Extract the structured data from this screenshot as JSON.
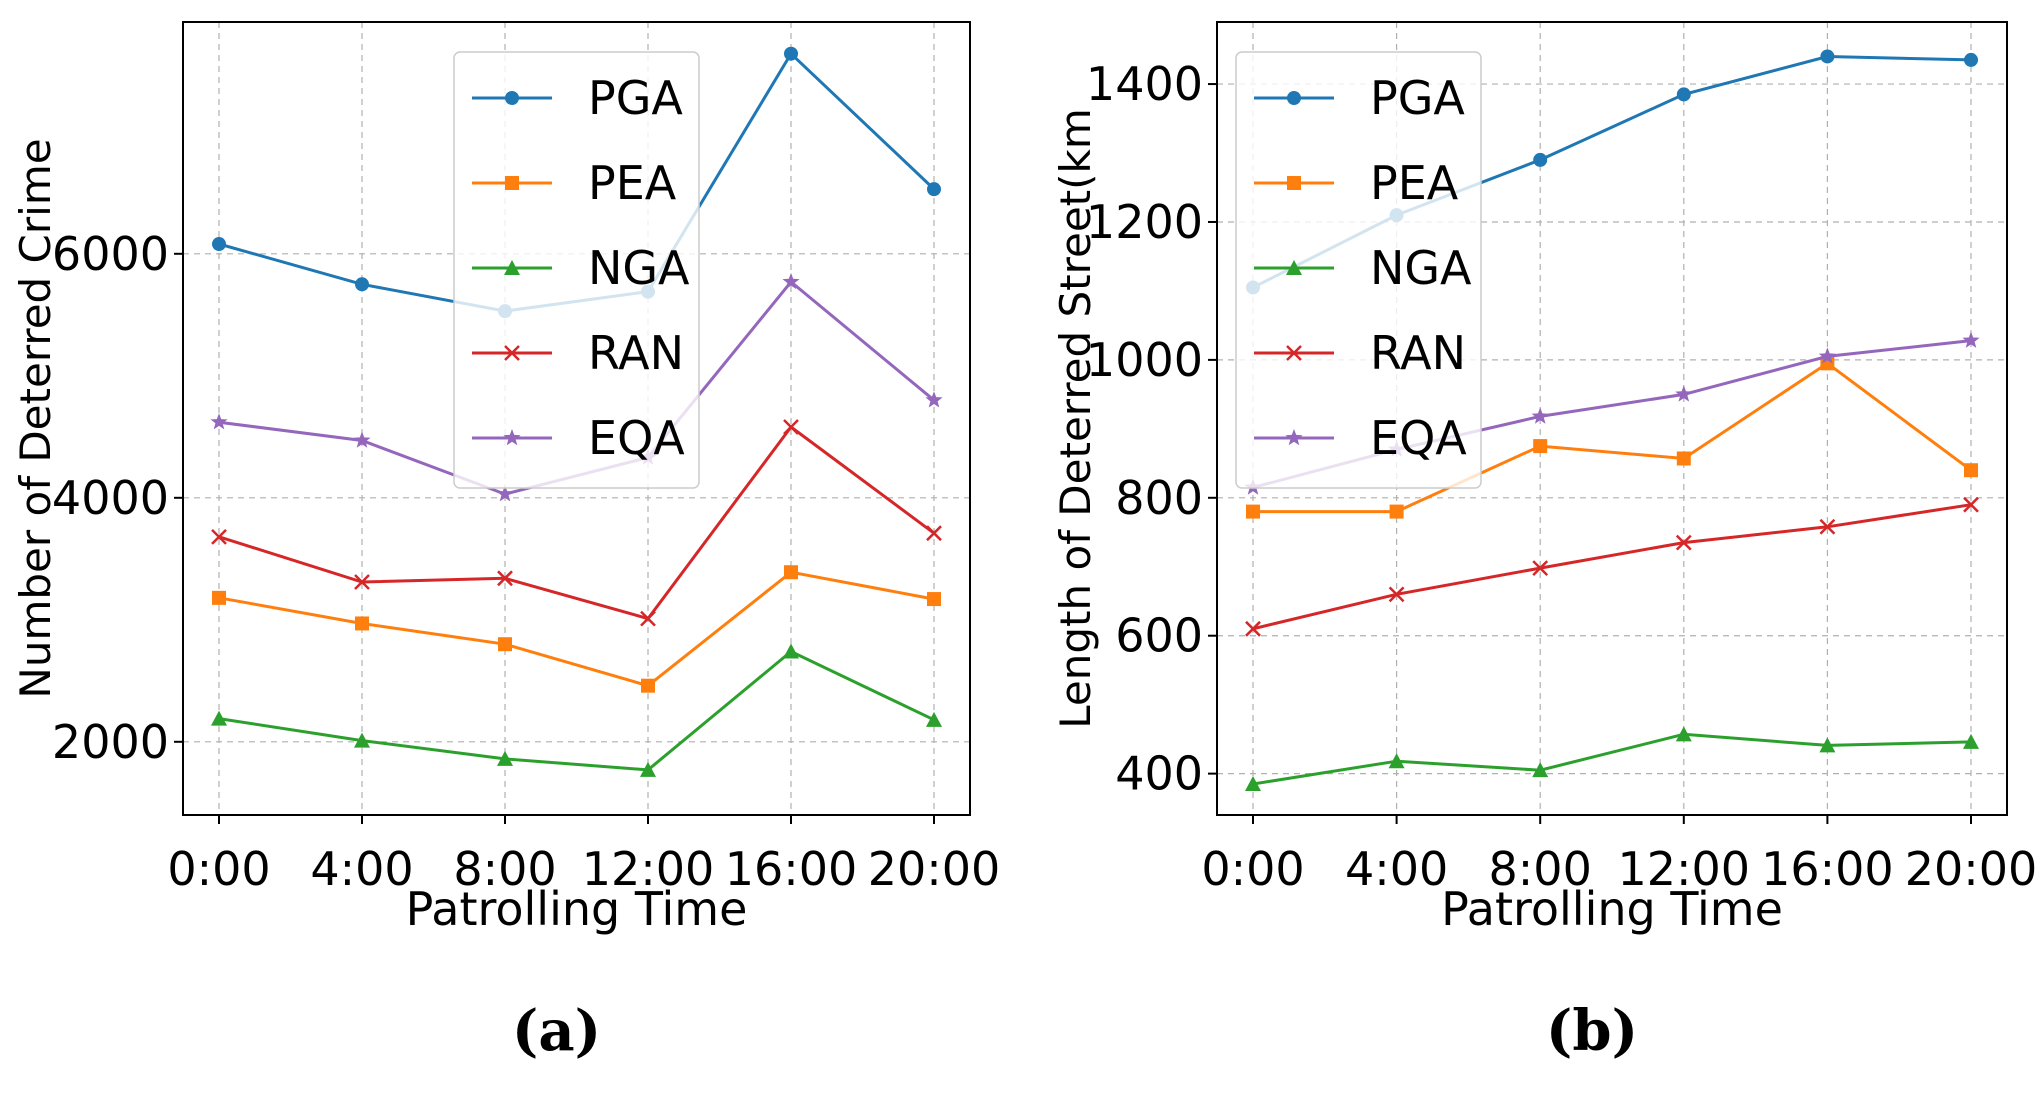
{
  "chart_data": [
    {
      "type": "line",
      "panel_label": "(a)",
      "xlabel": "Patrolling Time",
      "ylabel": "Number of Deterred Crime",
      "categories": [
        "0:00",
        "4:00",
        "8:00",
        "12:00",
        "16:00",
        "20:00"
      ],
      "ylim": [
        1400,
        7900
      ],
      "yticks": [
        "2000",
        "4000",
        "6000"
      ],
      "ytick_values": [
        2000,
        4000,
        6000
      ],
      "grid": true,
      "legend_position": "top-right",
      "series": [
        {
          "name": "PGA",
          "color": "#1f77b4",
          "marker": "circle",
          "values": [
            6080,
            5750,
            5530,
            5690,
            7640,
            6530
          ]
        },
        {
          "name": "PEA",
          "color": "#ff7f0e",
          "marker": "square",
          "values": [
            3180,
            2970,
            2800,
            2460,
            3390,
            3170
          ]
        },
        {
          "name": "NGA",
          "color": "#2ca02c",
          "marker": "triangle",
          "values": [
            2190,
            2010,
            1860,
            1770,
            2740,
            2180
          ]
        },
        {
          "name": "RAN",
          "color": "#d62728",
          "marker": "x",
          "values": [
            3680,
            3310,
            3340,
            3010,
            4580,
            3710
          ]
        },
        {
          "name": "EQA",
          "color": "#9467bd",
          "marker": "star",
          "values": [
            4620,
            4470,
            4030,
            4330,
            5770,
            4800
          ]
        }
      ]
    },
    {
      "type": "line",
      "panel_label": "(b)",
      "xlabel": "Patrolling Time",
      "ylabel": "Length of Deterred Street(km",
      "categories": [
        "0:00",
        "4:00",
        "8:00",
        "12:00",
        "16:00",
        "20:00"
      ],
      "ylim": [
        340,
        1490
      ],
      "yticks": [
        "400",
        "600",
        "800",
        "1000",
        "1200",
        "1400"
      ],
      "ytick_values": [
        400,
        600,
        800,
        1000,
        1200,
        1400
      ],
      "grid": true,
      "legend_position": "top-left",
      "series": [
        {
          "name": "PGA",
          "color": "#1f77b4",
          "marker": "circle",
          "values": [
            1105,
            1210,
            1290,
            1385,
            1440,
            1435
          ]
        },
        {
          "name": "PEA",
          "color": "#ff7f0e",
          "marker": "square",
          "values": [
            780,
            780,
            875,
            857,
            995,
            840
          ]
        },
        {
          "name": "NGA",
          "color": "#2ca02c",
          "marker": "triangle",
          "values": [
            385,
            418,
            405,
            457,
            441,
            446
          ]
        },
        {
          "name": "RAN",
          "color": "#d62728",
          "marker": "x",
          "values": [
            610,
            660,
            698,
            735,
            758,
            790
          ]
        },
        {
          "name": "EQA",
          "color": "#9467bd",
          "marker": "star",
          "values": [
            815,
            870,
            918,
            950,
            1005,
            1028
          ]
        }
      ]
    }
  ]
}
